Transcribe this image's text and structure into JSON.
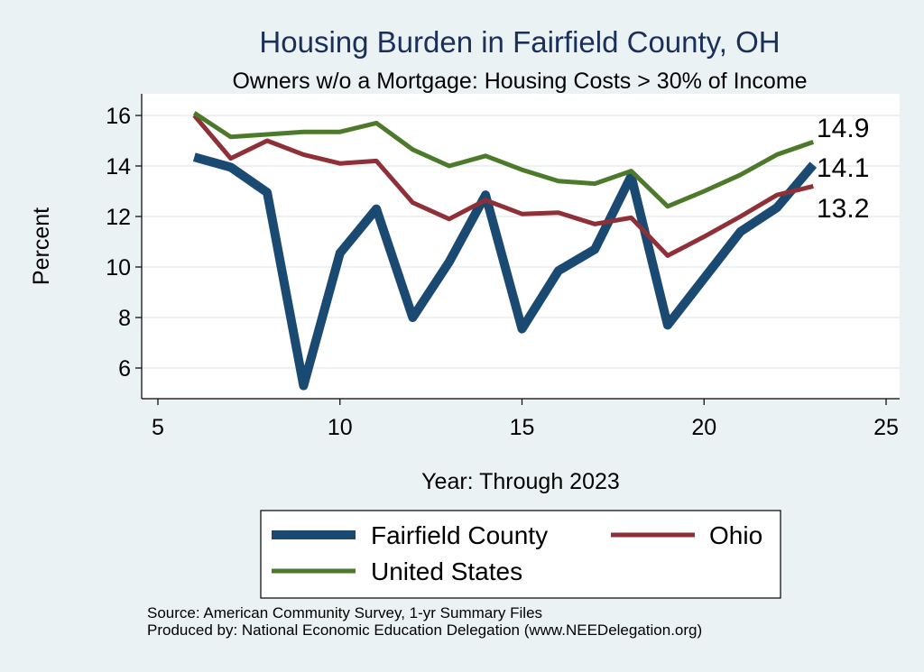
{
  "chart_data": {
    "type": "line",
    "title": "Housing Burden in Fairfield County, OH",
    "subtitle": "Owners w/o a Mortgage: Housing Costs > 30% of Income",
    "xlabel": "Year: Through 2023",
    "ylabel": "Percent",
    "xlim": [
      5,
      25
    ],
    "ylim": [
      4.6,
      16.8
    ],
    "xticks": [
      5,
      10,
      15,
      20,
      25
    ],
    "yticks": [
      6,
      8,
      10,
      12,
      14,
      16
    ],
    "grid": true,
    "series": [
      {
        "name": "Fairfield County",
        "color": "#1a4a72",
        "x": [
          6,
          7,
          8,
          9,
          10,
          11,
          12,
          13,
          14,
          15,
          16,
          17,
          18,
          19,
          20,
          21,
          22,
          23
        ],
        "values": [
          14.35,
          13.95,
          12.95,
          5.3,
          10.55,
          12.3,
          8.0,
          10.2,
          12.85,
          7.55,
          9.85,
          10.7,
          13.6,
          7.7,
          9.55,
          11.4,
          12.35,
          14.05
        ],
        "end_label": "14.1"
      },
      {
        "name": "Ohio",
        "color": "#8f3038",
        "x": [
          6,
          7,
          8,
          9,
          10,
          11,
          12,
          13,
          14,
          15,
          16,
          17,
          18,
          19,
          20,
          21,
          22,
          23
        ],
        "values": [
          16.0,
          14.3,
          15.0,
          14.45,
          14.1,
          14.2,
          12.55,
          11.9,
          12.65,
          12.1,
          12.15,
          11.7,
          11.95,
          10.45,
          11.2,
          12.0,
          12.85,
          13.2
        ],
        "end_label": "13.2"
      },
      {
        "name": "United States",
        "color": "#4d7a2a",
        "x": [
          6,
          7,
          8,
          9,
          10,
          11,
          12,
          13,
          14,
          15,
          16,
          17,
          18,
          19,
          20,
          21,
          22,
          23
        ],
        "values": [
          16.1,
          15.15,
          15.25,
          15.35,
          15.35,
          15.7,
          14.65,
          14.0,
          14.4,
          13.85,
          13.4,
          13.3,
          13.8,
          12.4,
          13.0,
          13.65,
          14.45,
          14.95
        ],
        "end_label": "14.9"
      }
    ],
    "legend": {
      "placement": "bottom",
      "entries": [
        "Fairfield County",
        "Ohio",
        "United States"
      ]
    }
  },
  "source": {
    "line1": "Source: American Community Survey, 1-yr Summary Files",
    "line2": "Produced by: National Economic Education Delegation (www.NEEDelegation.org)"
  }
}
